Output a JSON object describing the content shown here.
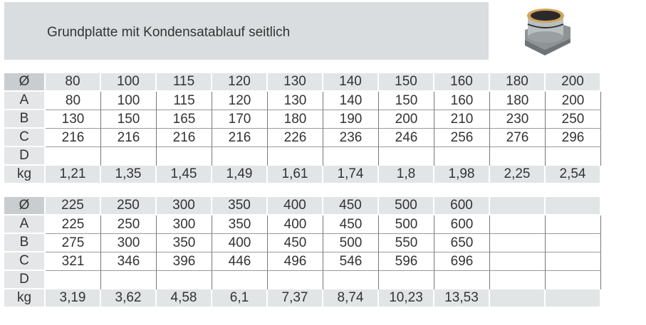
{
  "title": "Grundplatte mit Kondensatablauf seitlich",
  "row_labels": [
    "Ø",
    "A",
    "B",
    "C",
    "D",
    "kg"
  ],
  "tables": [
    {
      "rows": [
        [
          "80",
          "100",
          "115",
          "120",
          "130",
          "140",
          "150",
          "160",
          "180",
          "200"
        ],
        [
          "80",
          "100",
          "115",
          "120",
          "130",
          "140",
          "150",
          "160",
          "180",
          "200"
        ],
        [
          "130",
          "150",
          "165",
          "170",
          "180",
          "190",
          "200",
          "210",
          "230",
          "250"
        ],
        [
          "216",
          "216",
          "216",
          "216",
          "226",
          "236",
          "246",
          "256",
          "276",
          "296"
        ],
        [
          "",
          "",
          "",
          "",
          "",
          "",
          "",
          "",
          "",
          ""
        ],
        [
          "1,21",
          "1,35",
          "1,45",
          "1,49",
          "1,61",
          "1,74",
          "1,8",
          "1,98",
          "2,25",
          "2,54"
        ]
      ]
    },
    {
      "rows": [
        [
          "225",
          "250",
          "300",
          "350",
          "400",
          "450",
          "500",
          "600",
          "",
          ""
        ],
        [
          "225",
          "250",
          "300",
          "350",
          "400",
          "450",
          "500",
          "600",
          "",
          ""
        ],
        [
          "275",
          "300",
          "350",
          "400",
          "450",
          "500",
          "550",
          "650",
          "",
          ""
        ],
        [
          "321",
          "346",
          "396",
          "446",
          "496",
          "546",
          "596",
          "696",
          "",
          ""
        ],
        [
          "",
          "",
          "",
          "",
          "",
          "",
          "",
          "",
          "",
          ""
        ],
        [
          "3,19",
          "3,62",
          "4,58",
          "6,1",
          "7,37",
          "8,74",
          "10,23",
          "13,53",
          "",
          ""
        ]
      ]
    }
  ]
}
